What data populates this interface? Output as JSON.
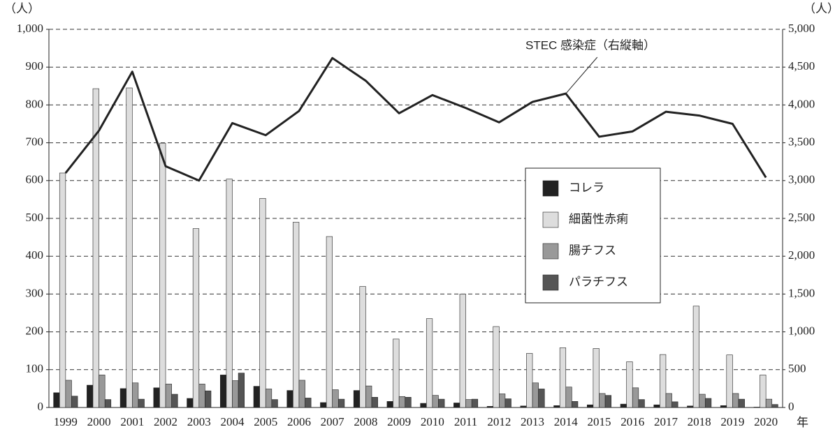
{
  "chart_data": {
    "type": "bar",
    "ylabel": "（人）",
    "y2label": "（人）",
    "xlabel": "年",
    "categories": [
      "1999",
      "2000",
      "2001",
      "2002",
      "2003",
      "2004",
      "2005",
      "2006",
      "2007",
      "2008",
      "2009",
      "2010",
      "2011",
      "2012",
      "2013",
      "2014",
      "2015",
      "2016",
      "2017",
      "2018",
      "2019",
      "2020"
    ],
    "series": [
      {
        "name": "コレラ",
        "color": "#222222",
        "values": [
          39,
          59,
          50,
          52,
          24,
          86,
          56,
          45,
          13,
          45,
          16,
          11,
          12,
          3,
          4,
          5,
          7,
          9,
          7,
          4,
          5,
          1
        ]
      },
      {
        "name": "細菌性赤痢",
        "color": "#dddddd",
        "values": [
          620,
          843,
          845,
          699,
          473,
          604,
          553,
          490,
          452,
          320,
          181,
          235,
          300,
          214,
          143,
          158,
          156,
          121,
          140,
          268,
          139,
          86
        ]
      },
      {
        "name": "腸チフス",
        "color": "#999999",
        "values": [
          72,
          86,
          65,
          62,
          62,
          71,
          49,
          72,
          47,
          57,
          29,
          32,
          21,
          36,
          65,
          54,
          37,
          52,
          37,
          35,
          37,
          22
        ]
      },
      {
        "name": "パラチフス",
        "color": "#555555",
        "values": [
          30,
          21,
          22,
          35,
          44,
          91,
          21,
          25,
          22,
          27,
          27,
          22,
          22,
          23,
          49,
          16,
          32,
          21,
          15,
          24,
          22,
          8
        ]
      },
      {
        "name": "STEC 感染症（右縦軸）",
        "type": "line",
        "axis": "y2",
        "color": "#222222",
        "values": [
          3100,
          3660,
          4440,
          3190,
          3000,
          3760,
          3600,
          3920,
          4620,
          4320,
          3890,
          4130,
          3960,
          3770,
          4040,
          4150,
          3580,
          3650,
          3910,
          3860,
          3750,
          3040
        ]
      }
    ],
    "ylim": [
      0,
      1000
    ],
    "yticks": [
      0,
      100,
      200,
      300,
      400,
      500,
      600,
      700,
      800,
      900,
      {
        "value": 1000,
        "label": "1,000"
      }
    ],
    "y2lim": [
      0,
      5000
    ],
    "y2ticks": [
      0,
      {
        "value": 500,
        "label": "500"
      },
      {
        "value": 1000,
        "label": "1,000"
      },
      {
        "value": 1500,
        "label": "1,500"
      },
      {
        "value": 2000,
        "label": "2,000"
      },
      {
        "value": 2500,
        "label": "2,500"
      },
      {
        "value": 3000,
        "label": "3,000"
      },
      {
        "value": 3500,
        "label": "3,500"
      },
      {
        "value": 4000,
        "label": "4,000"
      },
      {
        "value": 4500,
        "label": "4,500"
      },
      {
        "value": 5000,
        "label": "5,000"
      }
    ],
    "grid": true,
    "legend": "right"
  }
}
